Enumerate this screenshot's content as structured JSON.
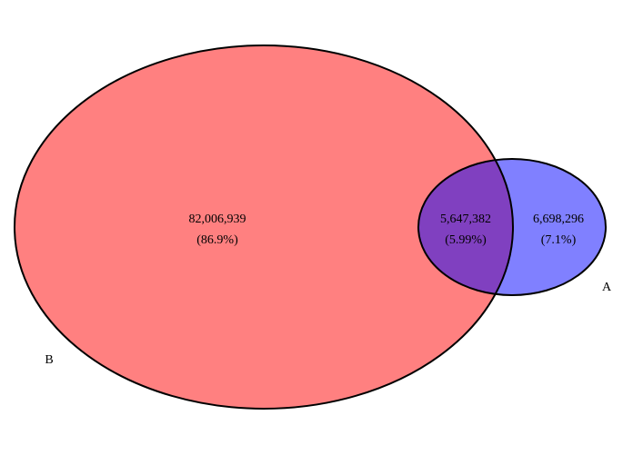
{
  "sets": [
    {
      "id": "B",
      "label": "B",
      "color": "#ff8080"
    },
    {
      "id": "A",
      "label": "A",
      "color": "#8080ff"
    }
  ],
  "regions": {
    "b_only": {
      "count": "82,006,939",
      "percent": "(86.9%)"
    },
    "intersection": {
      "count": "5,647,382",
      "percent": "(5.99%)",
      "color": "#8040c0"
    },
    "a_only": {
      "count": "6,698,296",
      "percent": "(7.1%)"
    }
  },
  "outline_color": "#000000"
}
